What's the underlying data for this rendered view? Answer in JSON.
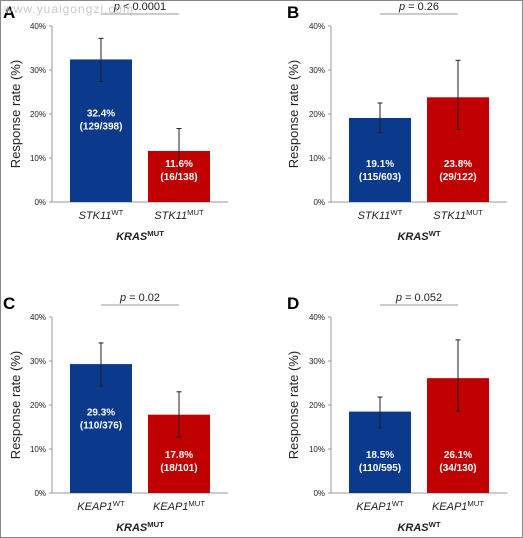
{
  "watermark": "www.yuaigongzi.com",
  "colors": {
    "wt": "#0b3a8c",
    "mut": "#c00000",
    "error": "#222222",
    "axis": "#9a9a9a",
    "text": "#222222"
  },
  "chart_data": [
    {
      "panel": "A",
      "type": "bar",
      "p_value": "p < 0.0001",
      "ylabel": "Response rate (%)",
      "ylim": [
        0,
        40
      ],
      "yticks": [
        "0%",
        "10%",
        "20%",
        "30%",
        "40%"
      ],
      "group_label": {
        "gene": "KRAS",
        "sup": "MUT"
      },
      "categories": [
        {
          "gene": "STK11",
          "sup": "WT"
        },
        {
          "gene": "STK11",
          "sup": "MUT"
        }
      ],
      "values": [
        32.4,
        11.6
      ],
      "error_low": [
        27.4,
        6.2
      ],
      "error_high": [
        37.2,
        16.7
      ],
      "labels": [
        "32.4%",
        "11.6%"
      ],
      "counts": [
        "(129/398)",
        "(16/138)"
      ]
    },
    {
      "panel": "B",
      "type": "bar",
      "p_value": "p = 0.26",
      "ylabel": "Response rate (%)",
      "ylim": [
        0,
        40
      ],
      "yticks": [
        "0%",
        "10%",
        "20%",
        "30%",
        "40%"
      ],
      "group_label": {
        "gene": "KRAS",
        "sup": "WT"
      },
      "categories": [
        {
          "gene": "STK11",
          "sup": "WT"
        },
        {
          "gene": "STK11",
          "sup": "MUT"
        }
      ],
      "values": [
        19.1,
        23.8
      ],
      "error_low": [
        15.8,
        16.5
      ],
      "error_high": [
        22.5,
        32.2
      ],
      "labels": [
        "19.1%",
        "23.8%"
      ],
      "counts": [
        "(115/603)",
        "(29/122)"
      ]
    },
    {
      "panel": "C",
      "type": "bar",
      "p_value": "p = 0.02",
      "ylabel": "Response rate (%)",
      "ylim": [
        0,
        40
      ],
      "yticks": [
        "0%",
        "10%",
        "20%",
        "30%",
        "40%"
      ],
      "group_label": {
        "gene": "KRAS",
        "sup": "MUT"
      },
      "categories": [
        {
          "gene": "KEAP1",
          "sup": "WT"
        },
        {
          "gene": "KEAP1",
          "sup": "MUT"
        }
      ],
      "values": [
        29.3,
        17.8
      ],
      "error_low": [
        24.3,
        12.7
      ],
      "error_high": [
        34.1,
        23.0
      ],
      "labels": [
        "29.3%",
        "17.8%"
      ],
      "counts": [
        "(110/376)",
        "(18/101)"
      ]
    },
    {
      "panel": "D",
      "type": "bar",
      "p_value": "p = 0.052",
      "ylabel": "Response rate (%)",
      "ylim": [
        0,
        40
      ],
      "yticks": [
        "0%",
        "10%",
        "20%",
        "30%",
        "40%"
      ],
      "group_label": {
        "gene": "KRAS",
        "sup": "WT"
      },
      "categories": [
        {
          "gene": "KEAP1",
          "sup": "WT"
        },
        {
          "gene": "KEAP1",
          "sup": "MUT"
        }
      ],
      "values": [
        18.5,
        26.1
      ],
      "error_low": [
        14.8,
        18.6
      ],
      "error_high": [
        21.8,
        34.8
      ],
      "labels": [
        "18.5%",
        "26.1%"
      ],
      "counts": [
        "(110/595)",
        "(34/130)"
      ]
    }
  ]
}
